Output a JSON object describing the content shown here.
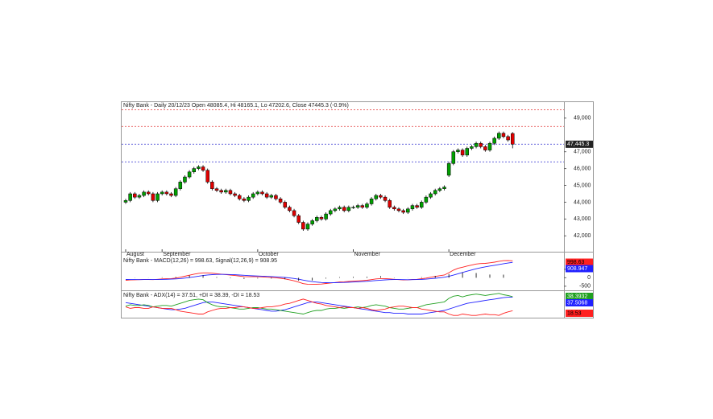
{
  "chart_data": [
    {
      "type": "candlestick",
      "title": "Nifty Bank - Daily 20/12/23 Open 48085.4, Hi 48165.1, Lo 47202.6, Close 47445.3 (-0.9%)",
      "categories": [
        "August",
        null,
        null,
        null,
        null,
        null,
        null,
        null,
        "September",
        null,
        null,
        null,
        null,
        null,
        null,
        null,
        null,
        null,
        null,
        null,
        null,
        null,
        null,
        null,
        null,
        null,
        null,
        null,
        null,
        "October",
        null,
        null,
        null,
        null,
        null,
        null,
        null,
        null,
        null,
        null,
        null,
        null,
        null,
        null,
        null,
        null,
        null,
        null,
        null,
        null,
        "November",
        null,
        null,
        null,
        null,
        null,
        null,
        null,
        null,
        null,
        null,
        null,
        null,
        null,
        null,
        null,
        null,
        null,
        null,
        null,
        null,
        "December",
        null,
        null,
        null,
        null,
        null,
        null,
        null,
        null,
        null,
        null,
        null,
        null,
        null,
        null
      ],
      "open": [
        44000,
        44100,
        44500,
        44300,
        44400,
        44600,
        44500,
        44100,
        44500,
        44600,
        44500,
        44400,
        44800,
        45200,
        45500,
        45800,
        46000,
        46100,
        45900,
        45200,
        44800,
        44700,
        44600,
        44700,
        44500,
        44400,
        44200,
        44100,
        44300,
        44500,
        44600,
        44500,
        44300,
        44400,
        44200,
        44000,
        43700,
        43500,
        43200,
        42800,
        42400,
        42700,
        42900,
        43100,
        43000,
        43300,
        43500,
        43600,
        43700,
        43500,
        43700,
        43700,
        43800,
        43700,
        43900,
        44200,
        44400,
        44300,
        44100,
        43700,
        43600,
        43500,
        43400,
        43600,
        43800,
        43700,
        44000,
        44300,
        44500,
        44700,
        44800,
        45600,
        46300,
        47000,
        47100,
        46800,
        47200,
        47300,
        47500,
        47300,
        47100,
        47500,
        47800,
        48100,
        47900,
        48085.4
      ],
      "high": [
        44200,
        44600,
        44600,
        44500,
        44700,
        44700,
        44600,
        44600,
        44700,
        44700,
        44600,
        44900,
        45300,
        45600,
        45900,
        46100,
        46200,
        46200,
        46000,
        45300,
        44900,
        44800,
        44800,
        44800,
        44600,
        44500,
        44300,
        44400,
        44600,
        44700,
        44700,
        44600,
        44500,
        44500,
        44300,
        44100,
        43800,
        43600,
        43300,
        42900,
        42800,
        43000,
        43200,
        43200,
        43400,
        43600,
        43700,
        43800,
        43800,
        43800,
        43800,
        43900,
        43900,
        44000,
        44300,
        44500,
        44500,
        44400,
        44200,
        43800,
        43700,
        43600,
        43700,
        43900,
        43900,
        44100,
        44400,
        44600,
        44800,
        44900,
        45000,
        46400,
        47100,
        47200,
        47200,
        47300,
        47400,
        47600,
        47600,
        47400,
        47600,
        47900,
        48200,
        48200,
        48000,
        48165.1
      ],
      "low": [
        43900,
        44000,
        44200,
        44200,
        44300,
        44400,
        44000,
        44000,
        44400,
        44400,
        44300,
        44300,
        44700,
        45100,
        45400,
        45700,
        45900,
        45800,
        45100,
        44700,
        44600,
        44500,
        44500,
        44400,
        44300,
        44100,
        44000,
        44000,
        44200,
        44400,
        44400,
        44200,
        44200,
        44100,
        43900,
        43600,
        43400,
        43100,
        42700,
        42300,
        42300,
        42600,
        42800,
        42900,
        42900,
        43200,
        43400,
        43500,
        43400,
        43400,
        43600,
        43600,
        43600,
        43600,
        43800,
        44100,
        44200,
        44000,
        43600,
        43500,
        43400,
        43300,
        43300,
        43500,
        43600,
        43600,
        43900,
        44200,
        44400,
        44600,
        44700,
        45500,
        46200,
        46900,
        46700,
        46700,
        47100,
        47200,
        47200,
        47000,
        47000,
        47400,
        47700,
        47800,
        47600,
        47202.6
      ],
      "close": [
        44100,
        44500,
        44300,
        44400,
        44600,
        44500,
        44100,
        44500,
        44600,
        44500,
        44400,
        44800,
        45200,
        45500,
        45800,
        46000,
        46100,
        45900,
        45200,
        44800,
        44700,
        44600,
        44700,
        44500,
        44400,
        44200,
        44100,
        44300,
        44500,
        44600,
        44500,
        44300,
        44400,
        44200,
        44000,
        43700,
        43500,
        43200,
        42800,
        42400,
        42700,
        42900,
        43100,
        43000,
        43300,
        43500,
        43600,
        43700,
        43500,
        43700,
        43700,
        43800,
        43700,
        43900,
        44200,
        44400,
        44300,
        44100,
        43700,
        43600,
        43500,
        43400,
        43600,
        43800,
        43700,
        44000,
        44300,
        44500,
        44700,
        44800,
        44900,
        46300,
        47000,
        47100,
        46800,
        47200,
        47300,
        47500,
        47300,
        47100,
        47500,
        47800,
        48100,
        47900,
        47700,
        47445.3
      ],
      "close_label": "47,445.3",
      "up_color": "#00a000",
      "down_color": "#e00000",
      "levels": [
        {
          "value": 49500,
          "color": "#e03030"
        },
        {
          "value": 48500,
          "color": "#e03030"
        },
        {
          "value": 47450,
          "color": "#3030d0"
        },
        {
          "value": 46400,
          "color": "#3030d0"
        }
      ],
      "ylim": [
        41200,
        49900
      ],
      "yticks": [
        {
          "value": 42000,
          "label": "42,000"
        },
        {
          "value": 43000,
          "label": "43,000"
        },
        {
          "value": 44000,
          "label": "44,000"
        },
        {
          "value": 45000,
          "label": "45,000"
        },
        {
          "value": 46000,
          "label": "46,000"
        },
        {
          "value": 47000,
          "label": "47,000"
        },
        {
          "value": 49000,
          "label": "49,000"
        }
      ]
    },
    {
      "type": "line",
      "title": "Nifty Bank - MACD(12,26) = 998.63, Signal(12,26,9) = 908.95",
      "ylim": [
        -600,
        1300
      ],
      "yticks": [
        500,
        0,
        -500
      ],
      "series": [
        {
          "name": "MACD",
          "color": "#ff2020",
          "values": [
            -150,
            -130,
            -120,
            -110,
            -100,
            -100,
            -110,
            -90,
            -70,
            -60,
            -50,
            -20,
            30,
            90,
            150,
            210,
            260,
            290,
            290,
            270,
            240,
            210,
            190,
            160,
            130,
            100,
            70,
            60,
            60,
            60,
            50,
            30,
            20,
            0,
            -30,
            -70,
            -120,
            -180,
            -260,
            -350,
            -380,
            -390,
            -380,
            -370,
            -340,
            -310,
            -280,
            -250,
            -240,
            -220,
            -200,
            -180,
            -170,
            -150,
            -110,
            -70,
            -50,
            -50,
            -70,
            -90,
            -110,
            -130,
            -120,
            -100,
            -90,
            -60,
            -20,
            30,
            80,
            120,
            160,
            300,
            450,
            560,
            620,
            690,
            750,
            810,
            840,
            850,
            880,
            920,
            970,
            1010,
            1020,
            998.63
          ]
        },
        {
          "name": "Signal",
          "color": "#2020ff",
          "values": [
            -100,
            -105,
            -108,
            -110,
            -108,
            -106,
            -107,
            -104,
            -97,
            -90,
            -82,
            -70,
            -50,
            -22,
            12,
            52,
            94,
            133,
            165,
            186,
            197,
            200,
            198,
            190,
            178,
            162,
            144,
            127,
            114,
            103,
            92,
            80,
            68,
            54,
            37,
            16,
            -11,
            -45,
            -88,
            -140,
            -188,
            -228,
            -258,
            -280,
            -292,
            -296,
            -293,
            -284,
            -275,
            -264,
            -251,
            -237,
            -224,
            -209,
            -189,
            -165,
            -142,
            -124,
            -113,
            -108,
            -108,
            -112,
            -114,
            -111,
            -107,
            -97,
            -82,
            -60,
            -32,
            -2,
            30,
            84,
            157,
            238,
            314,
            389,
            461,
            531,
            593,
            644,
            691,
            737,
            784,
            829,
            867,
            908.947
          ]
        },
        {
          "name": "Histogram",
          "type": "bar",
          "color": "#000000",
          "values": [
            -50,
            -25,
            -12,
            0,
            8,
            6,
            -3,
            14,
            27,
            30,
            32,
            50,
            80,
            112,
            138,
            158,
            166,
            157,
            125,
            84,
            43,
            10,
            -8,
            -30,
            -48,
            -62,
            -74,
            -67,
            -54,
            -43,
            -42,
            -50,
            -48,
            -54,
            -67,
            -86,
            -109,
            -135,
            -172,
            -210,
            -192,
            -162,
            -122,
            -90,
            -48,
            -14,
            13,
            34,
            35,
            44,
            51,
            57,
            54,
            59,
            79,
            95,
            92,
            74,
            43,
            18,
            -2,
            -18,
            -6,
            11,
            17,
            37,
            62,
            90,
            112,
            122,
            130,
            216,
            293,
            322,
            306,
            301,
            289,
            279,
            247,
            206,
            189,
            183,
            186,
            181,
            153,
            90
          ]
        }
      ]
    },
    {
      "type": "line",
      "title": "Nifty Bank - ADX(14) = 37.51, +DI = 38.39, -DI = 18.53",
      "ylim": [
        10,
        45
      ],
      "series": [
        {
          "name": "ADX",
          "color": "#2020ff",
          "values": [
            30,
            29,
            28,
            27,
            26,
            25,
            24,
            23,
            22,
            21,
            20,
            20,
            21,
            22,
            24,
            26,
            28,
            30,
            31,
            31,
            30,
            29,
            28,
            27,
            26,
            25,
            24,
            23,
            22,
            21,
            20,
            19,
            18,
            18,
            19,
            20,
            22,
            24,
            26,
            28,
            30,
            31,
            31,
            30,
            29,
            28,
            27,
            26,
            25,
            24,
            23,
            22,
            21,
            20,
            19,
            18,
            17,
            16,
            16,
            15,
            15,
            15,
            14,
            14,
            14,
            14,
            15,
            16,
            17,
            18,
            19,
            21,
            23,
            25,
            27,
            29,
            30,
            31,
            32,
            33,
            34,
            35,
            36,
            37,
            37.5,
            37.5068
          ]
        },
        {
          "name": "+DI",
          "color": "#20a020",
          "values": [
            25,
            27,
            26,
            26,
            27,
            26,
            24,
            25,
            26,
            26,
            25,
            27,
            29,
            31,
            33,
            34,
            35,
            34,
            30,
            27,
            25,
            24,
            24,
            23,
            22,
            21,
            21,
            22,
            23,
            23,
            22,
            21,
            21,
            20,
            19,
            18,
            17,
            16,
            15,
            14,
            16,
            18,
            19,
            19,
            21,
            22,
            22,
            23,
            22,
            23,
            23,
            24,
            23,
            24,
            26,
            27,
            26,
            25,
            23,
            22,
            21,
            21,
            22,
            23,
            23,
            25,
            27,
            28,
            29,
            30,
            31,
            36,
            39,
            40,
            38,
            40,
            41,
            42,
            41,
            40,
            41,
            42,
            43,
            41,
            40,
            38.3932
          ]
        },
        {
          "name": "-DI",
          "color": "#ff2020",
          "values": [
            24,
            22,
            23,
            23,
            22,
            22,
            24,
            23,
            22,
            22,
            22,
            20,
            18,
            17,
            16,
            15,
            14,
            14,
            17,
            19,
            21,
            22,
            22,
            23,
            23,
            24,
            24,
            23,
            22,
            22,
            23,
            24,
            24,
            25,
            26,
            28,
            29,
            31,
            33,
            35,
            33,
            31,
            29,
            28,
            26,
            25,
            24,
            23,
            24,
            23,
            23,
            22,
            23,
            22,
            20,
            19,
            20,
            21,
            23,
            24,
            25,
            25,
            24,
            23,
            23,
            21,
            20,
            19,
            18,
            17,
            17,
            14,
            12,
            12,
            14,
            13,
            12,
            12,
            13,
            14,
            13,
            13,
            12,
            15,
            17,
            18.53
          ]
        }
      ]
    }
  ]
}
